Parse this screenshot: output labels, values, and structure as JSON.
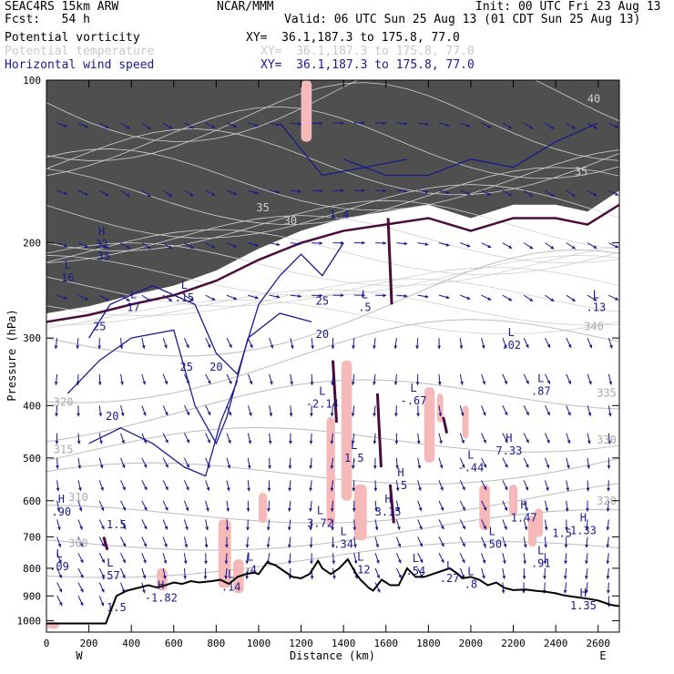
{
  "header": {
    "model": "SEAC4RS 15km ARW",
    "fcst": "Fcst:   54 h",
    "center": "NCAR/MMM",
    "init": "Init: 00 UTC Fri 23 Aug 13",
    "valid": "Valid: 06 UTC Sun 25 Aug 13 (01 CDT Sun 25 Aug 13)"
  },
  "fields": [
    {
      "name": "Potential vorticity",
      "xy": "XY=  36.1,187.3 to 175.8, 77.0",
      "color": "#000000"
    },
    {
      "name": "Potential temperature",
      "xy": "XY=  36.1,187.3 to 175.8, 77.0",
      "color": "#bbbbbb"
    },
    {
      "name": "Horizontal wind speed",
      "xy": "XY=  36.1,187.3 to 175.8, 77.0",
      "color": "#1a1a8c"
    }
  ],
  "axes": {
    "ylabel": "Pressure (hPa)",
    "xlabel": "Distance (km)",
    "west": "W",
    "east": "E"
  },
  "colors": {
    "pv_fill": "#f6b9b9",
    "pv_contour": "#4a0a3a",
    "theta": "#bbbbbb",
    "wind": "#1a1a8c",
    "terrain": "#000000",
    "stratosphere": "#3c3c3c"
  },
  "chart_data": {
    "type": "cross-section",
    "x_range": [
      0,
      2700
    ],
    "y_range": [
      100,
      1050
    ],
    "y_scale": "log-pressure",
    "x_ticks": [
      0,
      200,
      400,
      600,
      800,
      1000,
      1200,
      1400,
      1600,
      1800,
      2000,
      2200,
      2400,
      2600
    ],
    "y_ticks": [
      100,
      200,
      300,
      400,
      500,
      600,
      700,
      800,
      900,
      1000
    ],
    "terrain": [
      [
        0,
        1012
      ],
      [
        280,
        1012
      ],
      [
        330,
        900
      ],
      [
        380,
        880
      ],
      [
        420,
        872
      ],
      [
        480,
        860
      ],
      [
        520,
        868
      ],
      [
        560,
        860
      ],
      [
        600,
        850
      ],
      [
        640,
        855
      ],
      [
        680,
        845
      ],
      [
        720,
        850
      ],
      [
        780,
        845
      ],
      [
        820,
        840
      ],
      [
        860,
        855
      ],
      [
        900,
        830
      ],
      [
        940,
        820
      ],
      [
        980,
        815
      ],
      [
        1000,
        820
      ],
      [
        1040,
        780
      ],
      [
        1080,
        790
      ],
      [
        1120,
        810
      ],
      [
        1160,
        830
      ],
      [
        1200,
        835
      ],
      [
        1240,
        820
      ],
      [
        1280,
        775
      ],
      [
        1300,
        800
      ],
      [
        1340,
        820
      ],
      [
        1380,
        800
      ],
      [
        1420,
        770
      ],
      [
        1460,
        820
      ],
      [
        1480,
        840
      ],
      [
        1520,
        870
      ],
      [
        1540,
        880
      ],
      [
        1580,
        840
      ],
      [
        1620,
        860
      ],
      [
        1660,
        860
      ],
      [
        1700,
        800
      ],
      [
        1740,
        830
      ],
      [
        1780,
        830
      ],
      [
        1820,
        820
      ],
      [
        1860,
        810
      ],
      [
        1900,
        800
      ],
      [
        1940,
        820
      ],
      [
        1960,
        835
      ],
      [
        2000,
        830
      ],
      [
        2040,
        840
      ],
      [
        2080,
        860
      ],
      [
        2120,
        850
      ],
      [
        2160,
        870
      ],
      [
        2200,
        878
      ],
      [
        2260,
        876
      ],
      [
        2300,
        880
      ],
      [
        2360,
        885
      ],
      [
        2400,
        890
      ],
      [
        2440,
        898
      ],
      [
        2500,
        905
      ],
      [
        2560,
        912
      ],
      [
        2600,
        918
      ],
      [
        2660,
        935
      ],
      [
        2700,
        940
      ]
    ],
    "theta_labels": [
      {
        "x": 80,
        "p": 400,
        "text": "320"
      },
      {
        "x": 80,
        "p": 490,
        "text": "315"
      },
      {
        "x": 150,
        "p": 600,
        "text": "310"
      },
      {
        "x": 150,
        "p": 730,
        "text": "300"
      },
      {
        "x": 2580,
        "p": 290,
        "text": "340"
      },
      {
        "x": 2640,
        "p": 385,
        "text": "335"
      },
      {
        "x": 2640,
        "p": 470,
        "text": "330"
      },
      {
        "x": 2640,
        "p": 610,
        "text": "320"
      }
    ],
    "wind_labels": [
      {
        "x": 270,
        "p": 215,
        "text": "35"
      },
      {
        "x": 250,
        "p": 290,
        "text": "25"
      },
      {
        "x": 310,
        "p": 425,
        "text": "20"
      },
      {
        "x": 660,
        "p": 345,
        "text": "25"
      },
      {
        "x": 800,
        "p": 345,
        "text": "20"
      },
      {
        "x": 1150,
        "p": 185,
        "text": "30"
      },
      {
        "x": 1300,
        "p": 260,
        "text": "25"
      },
      {
        "x": 1300,
        "p": 300,
        "text": "20"
      },
      {
        "x": 1020,
        "p": 175,
        "text": "35"
      },
      {
        "x": 2520,
        "p": 150,
        "text": "35"
      },
      {
        "x": 2580,
        "p": 110,
        "text": "40"
      }
    ],
    "extrema": [
      {
        "x": 100,
        "p": 225,
        "kind": "L",
        "value": "16"
      },
      {
        "x": 260,
        "p": 195,
        "kind": "H",
        "value": "32"
      },
      {
        "x": 410,
        "p": 255,
        "kind": "L",
        "value": "17"
      },
      {
        "x": 650,
        "p": 245,
        "kind": "L",
        "value": ".15"
      },
      {
        "x": 1300,
        "p": 385,
        "kind": "L",
        "value": "-2.14"
      },
      {
        "x": 1500,
        "p": 255,
        "kind": "L",
        "value": ".5"
      },
      {
        "x": 1450,
        "p": 485,
        "kind": "L",
        "value": "1.5"
      },
      {
        "x": 1730,
        "p": 380,
        "kind": "L",
        "value": "-.67"
      },
      {
        "x": 1670,
        "p": 545,
        "kind": "H",
        "value": ".5"
      },
      {
        "x": 1610,
        "p": 610,
        "kind": "H",
        "value": "3.15"
      },
      {
        "x": 1290,
        "p": 640,
        "kind": "L",
        "value": "3.72"
      },
      {
        "x": 1400,
        "p": 700,
        "kind": "L",
        "value": ".34"
      },
      {
        "x": 2000,
        "p": 505,
        "kind": "L",
        "value": "-.44"
      },
      {
        "x": 2180,
        "p": 470,
        "kind": "H",
        "value": "7.33"
      },
      {
        "x": 2190,
        "p": 300,
        "kind": "L",
        "value": ".02"
      },
      {
        "x": 2330,
        "p": 365,
        "kind": "L",
        "value": ".87"
      },
      {
        "x": 2590,
        "p": 255,
        "kind": "L",
        "value": ".13"
      },
      {
        "x": 2250,
        "p": 625,
        "kind": "H",
        "value": "1.47"
      },
      {
        "x": 2530,
        "p": 660,
        "kind": "H",
        "value": "1.33"
      },
      {
        "x": 2100,
        "p": 700,
        "kind": "L",
        "value": ".50"
      },
      {
        "x": 2330,
        "p": 760,
        "kind": "L",
        "value": ".91"
      },
      {
        "x": 70,
        "p": 610,
        "kind": "H",
        "value": ".90"
      },
      {
        "x": 60,
        "p": 770,
        "kind": "L",
        "value": ".09"
      },
      {
        "x": 300,
        "p": 800,
        "kind": "L",
        "value": ".57"
      },
      {
        "x": 540,
        "p": 880,
        "kind": "H",
        "value": "-1.82"
      },
      {
        "x": 870,
        "p": 840,
        "kind": "L",
        "value": ".14"
      },
      {
        "x": 960,
        "p": 780,
        "kind": "L",
        "value": ".4"
      },
      {
        "x": 1480,
        "p": 780,
        "kind": "L",
        "value": ".12"
      },
      {
        "x": 1740,
        "p": 785,
        "kind": "L",
        "value": ".54"
      },
      {
        "x": 1900,
        "p": 810,
        "kind": "L",
        "value": ".27"
      },
      {
        "x": 2000,
        "p": 830,
        "kind": "L",
        "value": ".8"
      },
      {
        "x": 2530,
        "p": 910,
        "kind": "H",
        "value": "1.35"
      }
    ],
    "pv_text_labels": [
      {
        "x": 330,
        "p": 675,
        "text": "1.5"
      },
      {
        "x": 330,
        "p": 960,
        "text": "1.5"
      },
      {
        "x": 1380,
        "p": 180,
        "text": "1.4"
      },
      {
        "x": 2430,
        "p": 700,
        "text": "1.5"
      }
    ],
    "pv_positive_patches": [
      [
        810,
        650,
        60,
        220
      ],
      [
        880,
        770,
        50,
        120
      ],
      [
        1320,
        420,
        40,
        250
      ],
      [
        1390,
        330,
        50,
        270
      ],
      [
        1450,
        560,
        60,
        150
      ],
      [
        1780,
        370,
        50,
        140
      ],
      [
        1960,
        400,
        30,
        60
      ],
      [
        2040,
        560,
        50,
        120
      ],
      [
        2180,
        560,
        40,
        80
      ],
      [
        2270,
        640,
        40,
        90
      ],
      [
        1000,
        580,
        40,
        80
      ],
      [
        520,
        800,
        50,
        80
      ],
      [
        2300,
        620,
        40,
        80
      ],
      [
        1840,
        380,
        30,
        50
      ],
      [
        1200,
        100,
        50,
        30
      ],
      [
        0,
        1005,
        60,
        30
      ]
    ],
    "pv_contours": [
      {
        "x": 1350,
        "p1": 330,
        "p2": 430
      },
      {
        "x": 1560,
        "p1": 380,
        "p2": 520
      },
      {
        "x": 1870,
        "p1": 420,
        "p2": 450
      },
      {
        "x": 1610,
        "p1": 180,
        "p2": 260
      },
      {
        "x": 1620,
        "p1": 560,
        "p2": 660
      },
      {
        "x": 270,
        "p1": 700,
        "p2": 740
      }
    ],
    "wind_vectors_grid": {
      "dx": 100,
      "pressure_levels": [
        120,
        160,
        200,
        250,
        300,
        350,
        400,
        450,
        500,
        550,
        600,
        650,
        700,
        750,
        800,
        850,
        900
      ]
    }
  }
}
